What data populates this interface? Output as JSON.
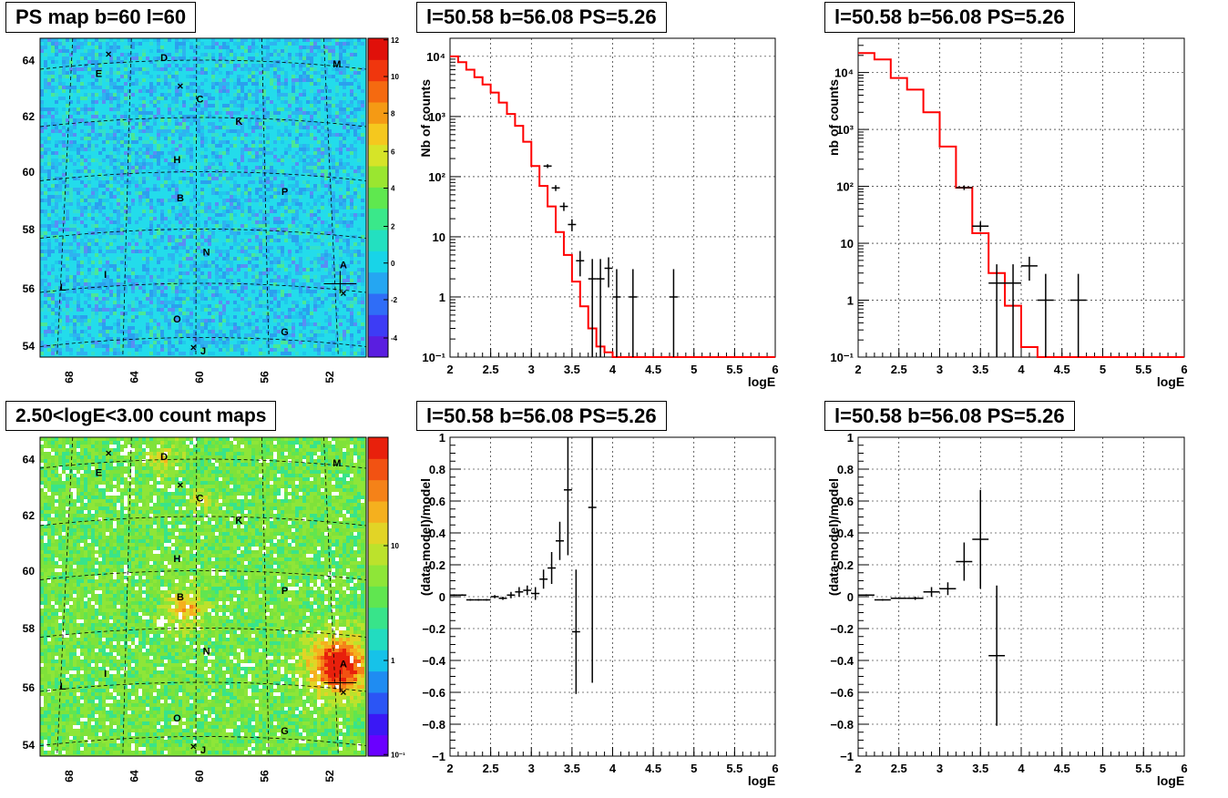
{
  "titles": {
    "map_top": "PS map b=60 l=60",
    "map_bottom": "2.50<logE<3.00 count maps",
    "spec1": "l=50.58 b=56.08 PS=5.26",
    "spec2": "l=50.58 b=56.08 PS=5.26",
    "res1": "l=50.58 b=56.08 PS=5.26",
    "res2": "l=50.58 b=56.08 PS=5.26"
  },
  "colors": {
    "model": "#ff0000",
    "data": "#000000",
    "grid": "#000000"
  },
  "chart_data": [
    {
      "id": "map_top",
      "type": "heatmap",
      "title": "PS map b=60 l=60",
      "x_ticks": [
        "68",
        "64",
        "60",
        "56",
        "52"
      ],
      "y_ticks": [
        "54",
        "56",
        "58",
        "60",
        "62",
        "64"
      ],
      "colorbar_ticks": [
        "12",
        "10",
        "8",
        "6",
        "4",
        "2",
        "0",
        "-2",
        "-4"
      ],
      "zrange": [
        -5,
        12
      ],
      "source_labels": [
        "D",
        "E",
        "M",
        "C",
        "K",
        "H",
        "B",
        "P",
        "N",
        "A",
        "I",
        "L",
        "O",
        "G",
        "J"
      ]
    },
    {
      "id": "map_bottom",
      "type": "heatmap",
      "title": "2.50<logE<3.00 count maps",
      "x_ticks": [
        "68",
        "64",
        "60",
        "56",
        "52"
      ],
      "y_ticks": [
        "54",
        "56",
        "58",
        "60",
        "62",
        "64"
      ],
      "colorbar_ticks": [
        "10",
        "1",
        "10⁻¹"
      ],
      "zscale": "log",
      "source_labels": [
        "D",
        "E",
        "M",
        "C",
        "K",
        "H",
        "B",
        "P",
        "N",
        "A",
        "I",
        "L",
        "O",
        "G",
        "J"
      ]
    },
    {
      "id": "spec1",
      "type": "line",
      "title": "l=50.58 b=56.08 PS=5.26",
      "xlabel": "logE",
      "ylabel": "Nb of counts",
      "yscale": "log",
      "xlim": [
        2,
        6
      ],
      "ylim": [
        0.1,
        20000
      ],
      "x_ticks": [
        "2",
        "2.5",
        "3",
        "3.5",
        "4",
        "4.5",
        "5",
        "5.5",
        "6"
      ],
      "y_ticks": [
        "10⁻¹",
        "1",
        "10",
        "10²",
        "10³",
        "10⁴"
      ],
      "model": {
        "name": "model",
        "bin_edges": [
          2,
          2.1,
          2.2,
          2.3,
          2.4,
          2.5,
          2.6,
          2.7,
          2.8,
          2.9,
          3.0,
          3.1,
          3.2,
          3.3,
          3.4,
          3.5,
          3.6,
          3.7,
          3.8,
          3.9,
          4.0,
          4.1,
          4.2,
          6
        ],
        "values": [
          10000,
          8000,
          6000,
          4500,
          3400,
          2500,
          1700,
          1100,
          700,
          380,
          150,
          70,
          32,
          12,
          5,
          1.8,
          0.7,
          0.3,
          0.15,
          0.12,
          0.1,
          0.1,
          0.1
        ]
      },
      "data": {
        "name": "data",
        "points": [
          [
            3.2,
            150
          ],
          [
            3.3,
            65
          ],
          [
            3.4,
            32
          ],
          [
            3.5,
            16
          ],
          [
            3.6,
            4
          ],
          [
            3.75,
            2
          ],
          [
            3.85,
            2
          ],
          [
            3.95,
            3
          ],
          [
            4.05,
            1
          ],
          [
            4.25,
            1
          ],
          [
            4.75,
            1
          ]
        ],
        "xerr": 0.05
      }
    },
    {
      "id": "spec2",
      "type": "line",
      "title": "l=50.58 b=56.08 PS=5.26",
      "xlabel": "logE",
      "ylabel": "nb of counts",
      "yscale": "log",
      "xlim": [
        2,
        6
      ],
      "ylim": [
        0.1,
        40000
      ],
      "x_ticks": [
        "2",
        "2.5",
        "3",
        "3.5",
        "4",
        "4.5",
        "5",
        "5.5",
        "6"
      ],
      "y_ticks": [
        "10⁻¹",
        "1",
        "10",
        "10²",
        "10³",
        "10⁴"
      ],
      "model": {
        "name": "model",
        "bin_edges": [
          2,
          2.2,
          2.4,
          2.6,
          2.8,
          3.0,
          3.2,
          3.4,
          3.6,
          3.8,
          4.0,
          4.2,
          6
        ],
        "values": [
          22000,
          17000,
          8000,
          5000,
          2000,
          500,
          95,
          15,
          3,
          0.8,
          0.15,
          0.1
        ]
      },
      "data": {
        "name": "data",
        "points": [
          [
            3.3,
            95
          ],
          [
            3.5,
            20
          ],
          [
            3.7,
            2
          ],
          [
            3.9,
            2
          ],
          [
            4.1,
            4
          ],
          [
            4.3,
            1
          ],
          [
            4.7,
            1
          ]
        ],
        "xerr": 0.1
      }
    },
    {
      "id": "res1",
      "type": "scatter",
      "title": "l=50.58 b=56.08 PS=5.26",
      "xlabel": "logE",
      "ylabel": "(data-model)/model",
      "xlim": [
        2,
        6
      ],
      "ylim": [
        -1,
        1
      ],
      "x_ticks": [
        "2",
        "2.5",
        "3",
        "3.5",
        "4",
        "4.5",
        "5",
        "5.5",
        "6"
      ],
      "y_ticks": [
        "-1",
        "-0.8",
        "-0.6",
        "-0.4",
        "-0.2",
        "0",
        "0.2",
        "0.4",
        "0.6",
        "0.8",
        "1"
      ],
      "points": [
        [
          2.05,
          0.01,
          0.005
        ],
        [
          2.15,
          0.01,
          0.005
        ],
        [
          2.25,
          -0.02,
          0.005
        ],
        [
          2.35,
          -0.02,
          0.005
        ],
        [
          2.45,
          -0.02,
          0.005
        ],
        [
          2.55,
          0.0,
          0.01
        ],
        [
          2.65,
          -0.01,
          0.01
        ],
        [
          2.75,
          0.01,
          0.02
        ],
        [
          2.85,
          0.03,
          0.03
        ],
        [
          2.95,
          0.04,
          0.03
        ],
        [
          3.05,
          0.02,
          0.04
        ],
        [
          3.15,
          0.11,
          0.06
        ],
        [
          3.25,
          0.18,
          0.1
        ],
        [
          3.35,
          0.35,
          0.12
        ],
        [
          3.45,
          0.67,
          0.41
        ],
        [
          3.55,
          -0.22,
          0.39
        ],
        [
          3.75,
          0.56,
          1.1
        ]
      ],
      "xerr": 0.05
    },
    {
      "id": "res2",
      "type": "scatter",
      "title": "l=50.58 b=56.08 PS=5.26",
      "xlabel": "logE",
      "ylabel": "(data-model)/model",
      "xlim": [
        2,
        6
      ],
      "ylim": [
        -1,
        1
      ],
      "x_ticks": [
        "2",
        "2.5",
        "3",
        "3.5",
        "4",
        "4.5",
        "5",
        "5.5",
        "6"
      ],
      "y_ticks": [
        "-1",
        "-0.8",
        "-0.6",
        "-0.4",
        "-0.2",
        "0",
        "0.2",
        "0.4",
        "0.6",
        "0.8",
        "1"
      ],
      "points": [
        [
          2.1,
          0.01,
          0.005
        ],
        [
          2.3,
          -0.02,
          0.005
        ],
        [
          2.5,
          -0.01,
          0.005
        ],
        [
          2.7,
          -0.01,
          0.01
        ],
        [
          2.9,
          0.03,
          0.03
        ],
        [
          3.1,
          0.05,
          0.04
        ],
        [
          3.3,
          0.22,
          0.12
        ],
        [
          3.5,
          0.36,
          0.31
        ],
        [
          3.7,
          -0.37,
          0.44
        ]
      ],
      "xerr": 0.1
    }
  ]
}
